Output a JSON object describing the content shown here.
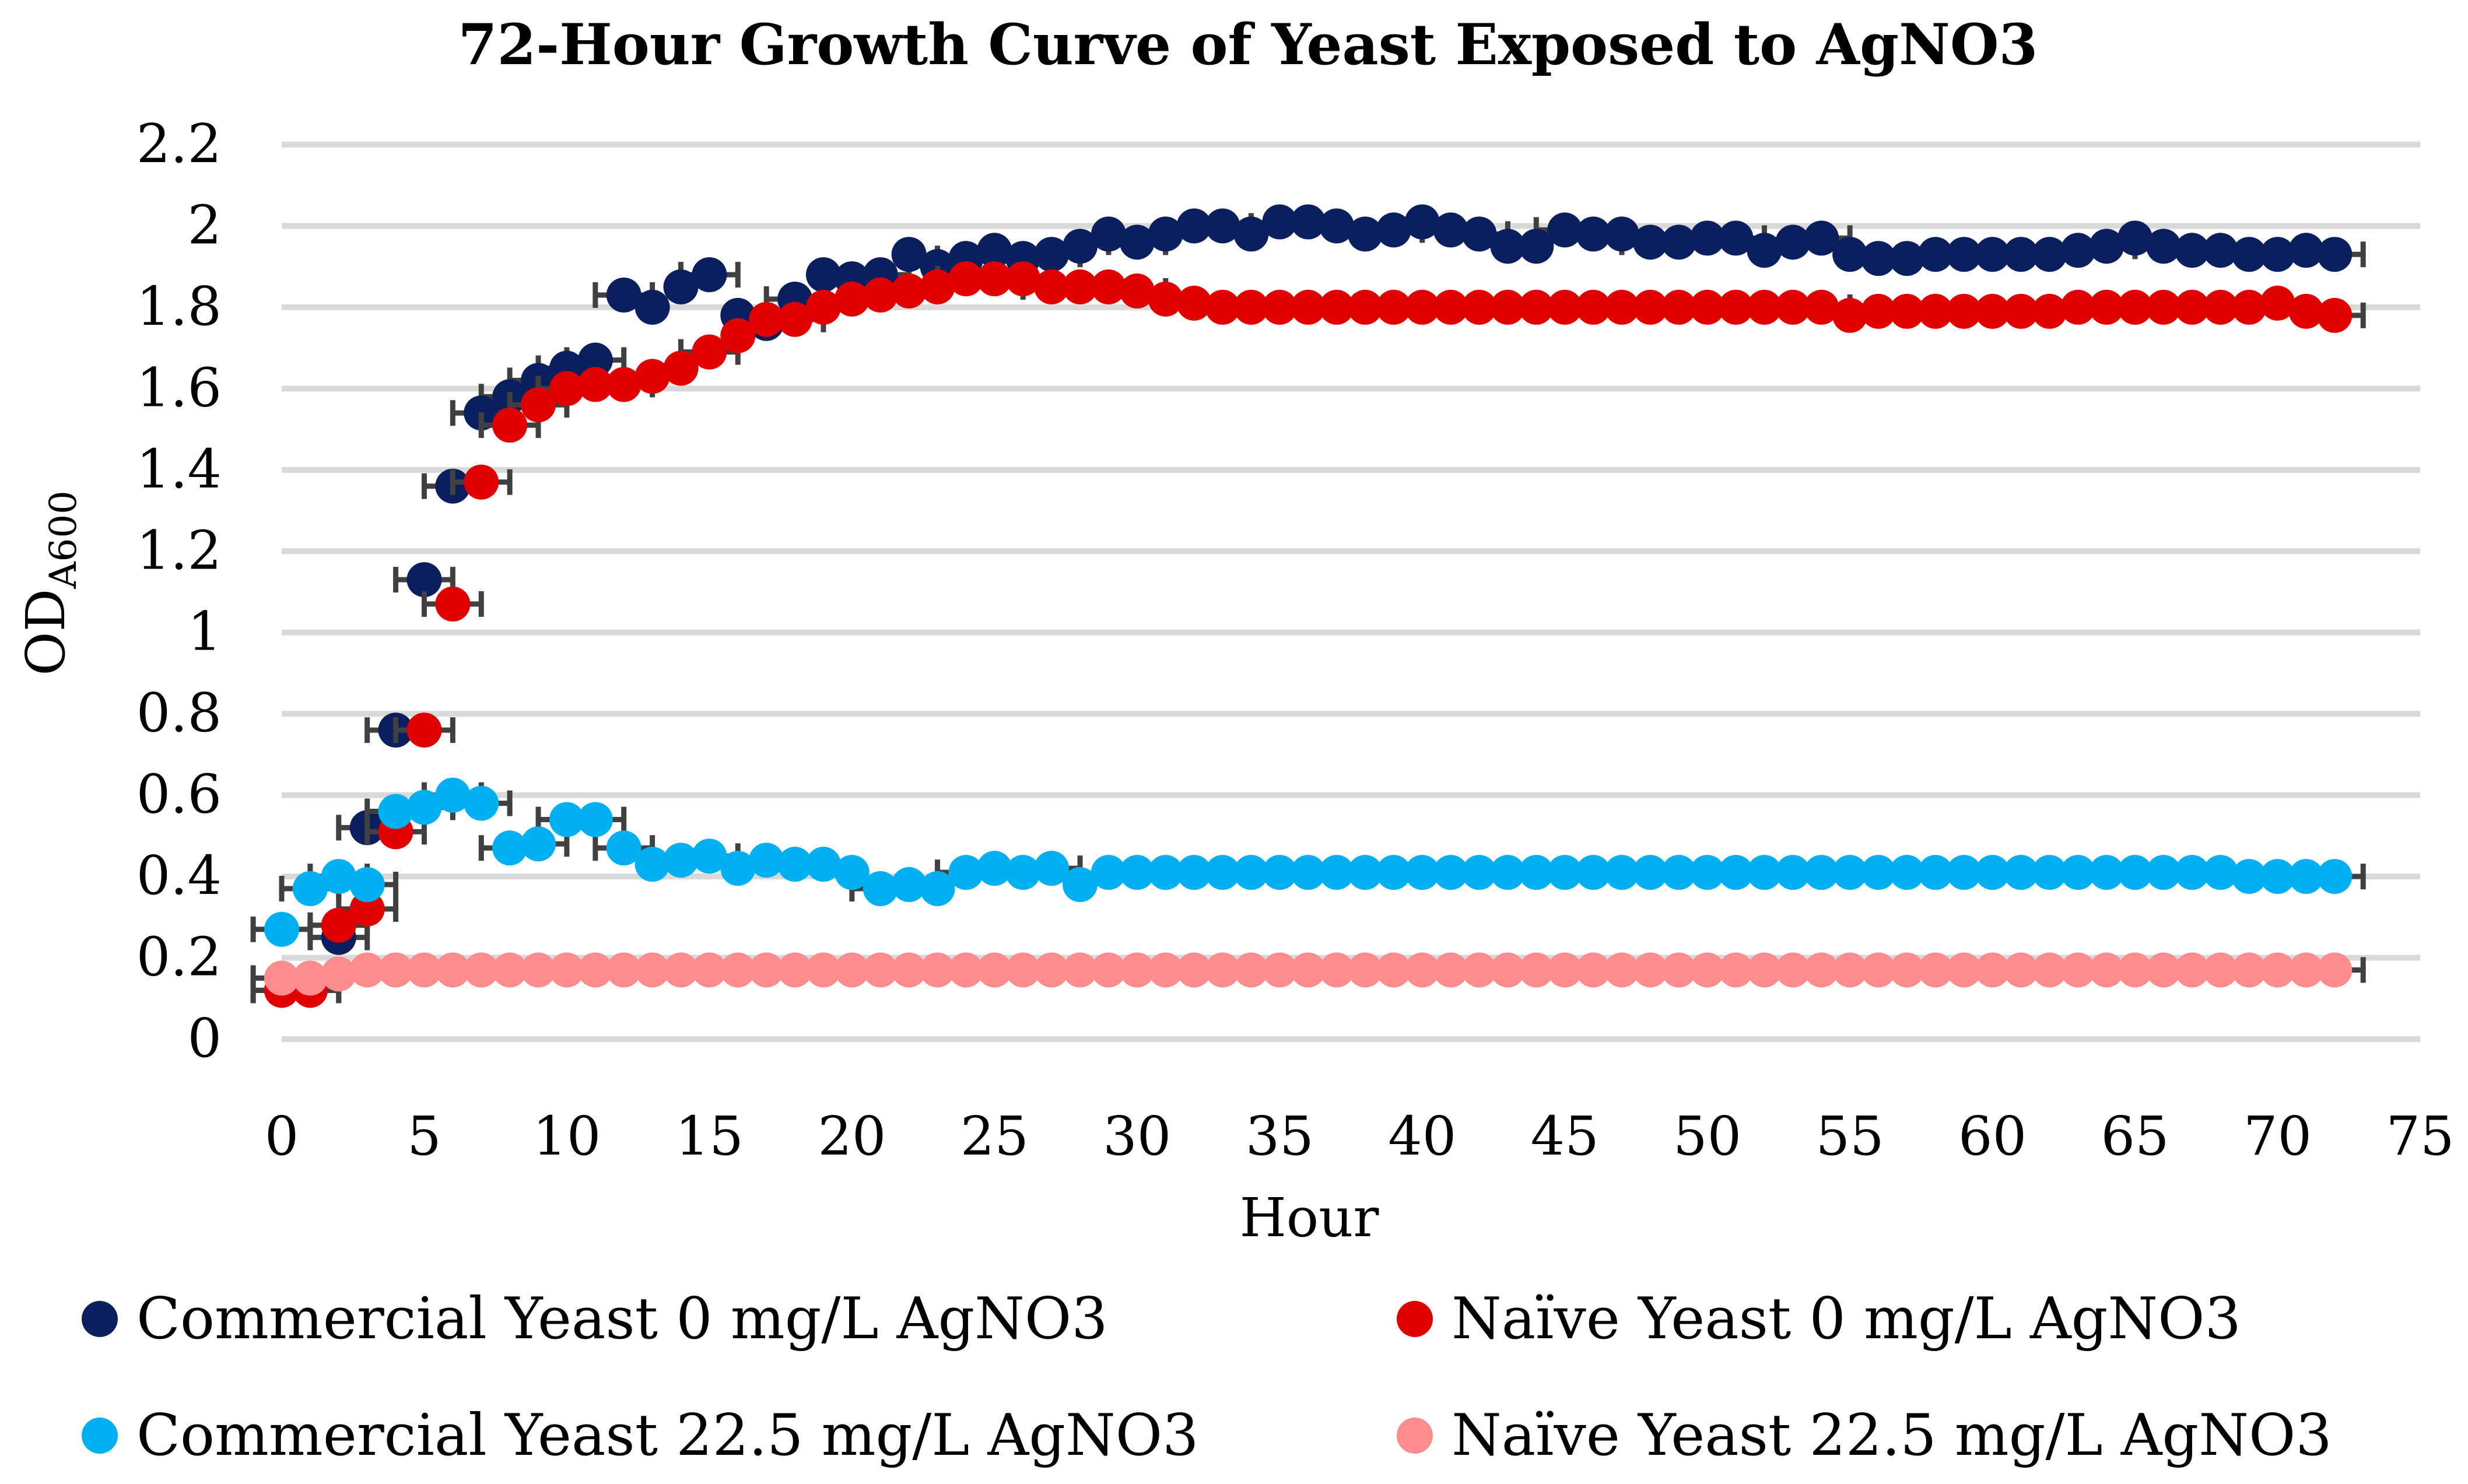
{
  "chart_data": {
    "type": "scatter",
    "title": "72-Hour Growth Curve of Yeast Exposed to AgNO3",
    "xlabel": "Hour",
    "ylabel": "OD",
    "ylabel_sub": "A600",
    "xlim": [
      0,
      75
    ],
    "ylim": [
      0,
      2.2
    ],
    "xticks": [
      "0",
      "5",
      "10",
      "15",
      "20",
      "25",
      "30",
      "35",
      "40",
      "45",
      "50",
      "55",
      "60",
      "65",
      "70",
      "75"
    ],
    "yticks": [
      "0",
      "0.2",
      "0.4",
      "0.6",
      "0.8",
      "1",
      "1.2",
      "1.4",
      "1.6",
      "1.8",
      "2",
      "2.2"
    ],
    "grid": true,
    "legend_position": "bottom",
    "x_error": 1,
    "series": [
      {
        "name": "Commercial Yeast 0 mg/L AgNO3",
        "color": "#0b1f5e",
        "values": [
          0.12,
          0.12,
          0.25,
          0.52,
          0.76,
          1.13,
          1.36,
          1.54,
          1.58,
          1.62,
          1.65,
          1.67,
          1.83,
          1.8,
          1.85,
          1.88,
          1.78,
          1.76,
          1.82,
          1.88,
          1.87,
          1.88,
          1.93,
          1.9,
          1.92,
          1.94,
          1.92,
          1.93,
          1.95,
          1.98,
          1.96,
          1.98,
          2.0,
          2.0,
          1.98,
          2.01,
          2.01,
          2.0,
          1.98,
          1.99,
          2.01,
          1.99,
          1.98,
          1.95,
          1.95,
          1.99,
          1.98,
          1.98,
          1.96,
          1.96,
          1.97,
          1.97,
          1.94,
          1.96,
          1.97,
          1.93,
          1.92,
          1.92,
          1.93,
          1.93,
          1.93,
          1.93,
          1.93,
          1.94,
          1.95,
          1.97,
          1.95,
          1.94,
          1.94,
          1.93,
          1.93,
          1.94,
          1.93
        ]
      },
      {
        "name": "Naïve Yeast 0 mg/L AgNO3",
        "color": "#e00000",
        "values": [
          0.12,
          0.12,
          0.28,
          0.32,
          0.51,
          0.76,
          1.07,
          1.37,
          1.51,
          1.56,
          1.6,
          1.61,
          1.61,
          1.63,
          1.65,
          1.69,
          1.73,
          1.77,
          1.77,
          1.8,
          1.82,
          1.83,
          1.84,
          1.85,
          1.87,
          1.87,
          1.87,
          1.85,
          1.85,
          1.85,
          1.84,
          1.82,
          1.81,
          1.8,
          1.8,
          1.8,
          1.8,
          1.8,
          1.8,
          1.8,
          1.8,
          1.8,
          1.8,
          1.8,
          1.8,
          1.8,
          1.8,
          1.8,
          1.8,
          1.8,
          1.8,
          1.8,
          1.8,
          1.8,
          1.8,
          1.78,
          1.79,
          1.79,
          1.79,
          1.79,
          1.79,
          1.79,
          1.79,
          1.8,
          1.8,
          1.8,
          1.8,
          1.8,
          1.8,
          1.8,
          1.81,
          1.79,
          1.78
        ]
      },
      {
        "name": "Commercial Yeast 22.5 mg/L AgNO3",
        "color": "#00b0f0",
        "values": [
          0.27,
          0.37,
          0.4,
          0.38,
          0.56,
          0.57,
          0.6,
          0.58,
          0.47,
          0.48,
          0.54,
          0.54,
          0.47,
          0.43,
          0.44,
          0.45,
          0.42,
          0.44,
          0.43,
          0.43,
          0.41,
          0.37,
          0.38,
          0.37,
          0.41,
          0.42,
          0.41,
          0.42,
          0.38,
          0.41,
          0.41,
          0.41,
          0.41,
          0.41,
          0.41,
          0.41,
          0.41,
          0.41,
          0.41,
          0.41,
          0.41,
          0.41,
          0.41,
          0.41,
          0.41,
          0.41,
          0.41,
          0.41,
          0.41,
          0.41,
          0.41,
          0.41,
          0.41,
          0.41,
          0.41,
          0.41,
          0.41,
          0.41,
          0.41,
          0.41,
          0.41,
          0.41,
          0.41,
          0.41,
          0.41,
          0.41,
          0.41,
          0.41,
          0.41,
          0.4,
          0.4,
          0.4,
          0.4
        ]
      },
      {
        "name": "Naïve Yeast 22.5 mg/L AgNO3",
        "color": "#ff8c8c",
        "values": [
          0.15,
          0.15,
          0.16,
          0.17,
          0.17,
          0.17,
          0.17,
          0.17,
          0.17,
          0.17,
          0.17,
          0.17,
          0.17,
          0.17,
          0.17,
          0.17,
          0.17,
          0.17,
          0.17,
          0.17,
          0.17,
          0.17,
          0.17,
          0.17,
          0.17,
          0.17,
          0.17,
          0.17,
          0.17,
          0.17,
          0.17,
          0.17,
          0.17,
          0.17,
          0.17,
          0.17,
          0.17,
          0.17,
          0.17,
          0.17,
          0.17,
          0.17,
          0.17,
          0.17,
          0.17,
          0.17,
          0.17,
          0.17,
          0.17,
          0.17,
          0.17,
          0.17,
          0.17,
          0.17,
          0.17,
          0.17,
          0.17,
          0.17,
          0.17,
          0.17,
          0.17,
          0.17,
          0.17,
          0.17,
          0.17,
          0.17,
          0.17,
          0.17,
          0.17,
          0.17,
          0.17,
          0.17,
          0.17
        ]
      }
    ]
  }
}
